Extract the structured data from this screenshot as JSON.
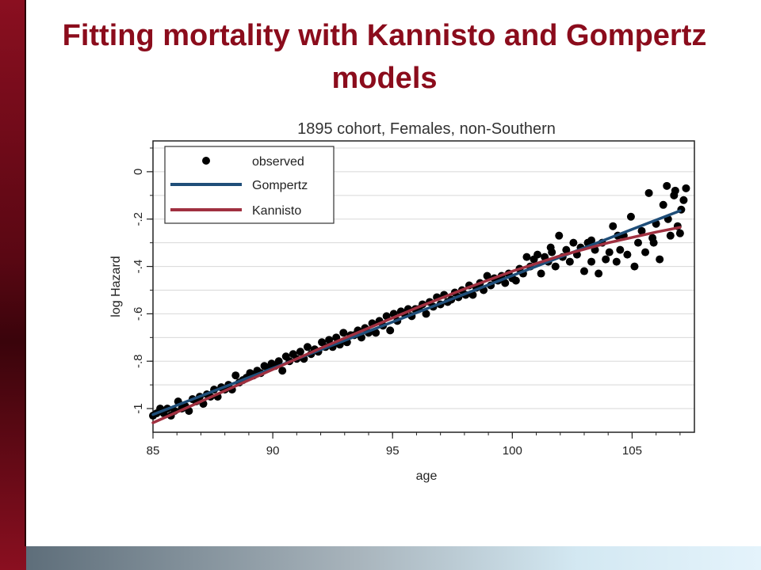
{
  "slide": {
    "title": "Fitting mortality with Kannisto and Gompertz models"
  },
  "colors": {
    "title": "#8b0c1c",
    "gompertz": "#1f4e79",
    "kannisto": "#a03040",
    "observed": "#000000"
  },
  "chart_data": {
    "type": "scatter",
    "title": "1895 cohort, Females, non-Southern",
    "xlabel": "age",
    "ylabel": "log Hazard",
    "xlim": [
      85,
      107.6
    ],
    "ylim": [
      -1.1,
      0.13
    ],
    "xticks": [
      85,
      90,
      95,
      100,
      105
    ],
    "xtick_labels": [
      "85",
      "90",
      "95",
      "100",
      "105"
    ],
    "yticks": [
      0,
      -0.2,
      -0.4,
      -0.6,
      -0.8,
      -1
    ],
    "ytick_labels": [
      "0",
      "-.2",
      "-.4",
      "-.6",
      "-.8",
      "-1"
    ],
    "grid": true,
    "legend_position": "top-left",
    "legend": [
      "observed",
      "Gompertz",
      "Kannisto"
    ],
    "series": [
      {
        "name": "observed",
        "mark": "point",
        "points": [
          [
            85.0,
            -1.03
          ],
          [
            85.15,
            -1.02
          ],
          [
            85.3,
            -1.0
          ],
          [
            85.45,
            -1.02
          ],
          [
            85.6,
            -1.0
          ],
          [
            85.75,
            -1.03
          ],
          [
            85.9,
            -1.01
          ],
          [
            86.05,
            -0.97
          ],
          [
            86.2,
            -1.0
          ],
          [
            86.35,
            -0.99
          ],
          [
            86.5,
            -1.01
          ],
          [
            86.65,
            -0.96
          ],
          [
            86.8,
            -0.97
          ],
          [
            86.95,
            -0.95
          ],
          [
            87.1,
            -0.98
          ],
          [
            87.25,
            -0.94
          ],
          [
            87.4,
            -0.95
          ],
          [
            87.55,
            -0.92
          ],
          [
            87.7,
            -0.95
          ],
          [
            87.85,
            -0.91
          ],
          [
            88.0,
            -0.92
          ],
          [
            88.15,
            -0.9
          ],
          [
            88.3,
            -0.92
          ],
          [
            88.45,
            -0.86
          ],
          [
            88.6,
            -0.89
          ],
          [
            88.75,
            -0.88
          ],
          [
            88.9,
            -0.87
          ],
          [
            89.05,
            -0.85
          ],
          [
            89.2,
            -0.86
          ],
          [
            89.35,
            -0.84
          ],
          [
            89.5,
            -0.85
          ],
          [
            89.65,
            -0.82
          ],
          [
            89.8,
            -0.83
          ],
          [
            89.95,
            -0.81
          ],
          [
            90.1,
            -0.82
          ],
          [
            90.25,
            -0.8
          ],
          [
            90.4,
            -0.84
          ],
          [
            90.55,
            -0.78
          ],
          [
            90.7,
            -0.8
          ],
          [
            90.85,
            -0.77
          ],
          [
            91.0,
            -0.79
          ],
          [
            91.15,
            -0.76
          ],
          [
            91.3,
            -0.79
          ],
          [
            91.45,
            -0.74
          ],
          [
            91.6,
            -0.77
          ],
          [
            91.75,
            -0.75
          ],
          [
            91.9,
            -0.76
          ],
          [
            92.05,
            -0.72
          ],
          [
            92.2,
            -0.74
          ],
          [
            92.35,
            -0.71
          ],
          [
            92.5,
            -0.74
          ],
          [
            92.65,
            -0.7
          ],
          [
            92.8,
            -0.73
          ],
          [
            92.95,
            -0.68
          ],
          [
            93.1,
            -0.72
          ],
          [
            93.25,
            -0.69
          ],
          [
            93.4,
            -0.69
          ],
          [
            93.55,
            -0.67
          ],
          [
            93.7,
            -0.7
          ],
          [
            93.85,
            -0.66
          ],
          [
            94.0,
            -0.68
          ],
          [
            94.15,
            -0.64
          ],
          [
            94.3,
            -0.68
          ],
          [
            94.45,
            -0.63
          ],
          [
            94.6,
            -0.65
          ],
          [
            94.75,
            -0.61
          ],
          [
            94.9,
            -0.67
          ],
          [
            95.05,
            -0.6
          ],
          [
            95.2,
            -0.63
          ],
          [
            95.35,
            -0.59
          ],
          [
            95.5,
            -0.6
          ],
          [
            95.65,
            -0.58
          ],
          [
            95.8,
            -0.61
          ],
          [
            95.95,
            -0.58
          ],
          [
            96.1,
            -0.58
          ],
          [
            96.25,
            -0.56
          ],
          [
            96.4,
            -0.6
          ],
          [
            96.55,
            -0.55
          ],
          [
            96.7,
            -0.57
          ],
          [
            96.85,
            -0.53
          ],
          [
            97.0,
            -0.56
          ],
          [
            97.15,
            -0.52
          ],
          [
            97.3,
            -0.55
          ],
          [
            97.45,
            -0.54
          ],
          [
            97.6,
            -0.51
          ],
          [
            97.75,
            -0.53
          ],
          [
            97.9,
            -0.5
          ],
          [
            98.05,
            -0.52
          ],
          [
            98.2,
            -0.48
          ],
          [
            98.35,
            -0.52
          ],
          [
            98.5,
            -0.49
          ],
          [
            98.65,
            -0.47
          ],
          [
            98.8,
            -0.5
          ],
          [
            98.95,
            -0.44
          ],
          [
            99.1,
            -0.48
          ],
          [
            99.25,
            -0.45
          ],
          [
            99.4,
            -0.46
          ],
          [
            99.55,
            -0.44
          ],
          [
            99.7,
            -0.47
          ],
          [
            99.85,
            -0.43
          ],
          [
            100.0,
            -0.45
          ],
          [
            100.15,
            -0.46
          ],
          [
            100.3,
            -0.41
          ],
          [
            100.45,
            -0.43
          ],
          [
            100.6,
            -0.36
          ],
          [
            100.75,
            -0.4
          ],
          [
            100.9,
            -0.37
          ],
          [
            101.05,
            -0.35
          ],
          [
            101.2,
            -0.43
          ],
          [
            101.35,
            -0.36
          ],
          [
            101.5,
            -0.38
          ],
          [
            101.65,
            -0.34
          ],
          [
            101.8,
            -0.4
          ],
          [
            101.95,
            -0.27
          ],
          [
            102.1,
            -0.36
          ],
          [
            102.25,
            -0.33
          ],
          [
            102.4,
            -0.38
          ],
          [
            102.55,
            -0.3
          ],
          [
            102.7,
            -0.35
          ],
          [
            102.85,
            -0.32
          ],
          [
            103.0,
            -0.42
          ],
          [
            103.15,
            -0.3
          ],
          [
            103.3,
            -0.38
          ],
          [
            103.45,
            -0.33
          ],
          [
            103.6,
            -0.43
          ],
          [
            103.75,
            -0.3
          ],
          [
            103.9,
            -0.37
          ],
          [
            104.05,
            -0.34
          ],
          [
            104.2,
            -0.23
          ],
          [
            104.35,
            -0.38
          ],
          [
            104.5,
            -0.33
          ],
          [
            104.65,
            -0.27
          ],
          [
            104.8,
            -0.35
          ],
          [
            104.95,
            -0.19
          ],
          [
            105.1,
            -0.4
          ],
          [
            105.25,
            -0.3
          ],
          [
            105.4,
            -0.25
          ],
          [
            105.55,
            -0.34
          ],
          [
            105.7,
            -0.09
          ],
          [
            105.85,
            -0.28
          ],
          [
            106.0,
            -0.22
          ],
          [
            106.15,
            -0.37
          ],
          [
            106.3,
            -0.14
          ],
          [
            106.45,
            -0.06
          ],
          [
            106.6,
            -0.27
          ],
          [
            106.75,
            -0.1
          ],
          [
            106.9,
            -0.23
          ],
          [
            107.05,
            -0.16
          ],
          [
            107.15,
            -0.12
          ],
          [
            107.25,
            -0.07
          ],
          [
            107.0,
            -0.26
          ],
          [
            106.5,
            -0.2
          ],
          [
            106.8,
            -0.08
          ],
          [
            105.9,
            -0.3
          ],
          [
            104.4,
            -0.27
          ],
          [
            103.3,
            -0.29
          ],
          [
            101.6,
            -0.32
          ]
        ]
      },
      {
        "name": "Gompertz",
        "mark": "line",
        "points": [
          [
            85,
            -1.025
          ],
          [
            107,
            -0.165
          ]
        ]
      },
      {
        "name": "Kannisto",
        "mark": "line",
        "points": [
          [
            85,
            -1.06
          ],
          [
            86,
            -1.015
          ],
          [
            88,
            -0.925
          ],
          [
            90,
            -0.835
          ],
          [
            92,
            -0.745
          ],
          [
            94,
            -0.66
          ],
          [
            96,
            -0.575
          ],
          [
            98,
            -0.495
          ],
          [
            100,
            -0.42
          ],
          [
            102,
            -0.355
          ],
          [
            104,
            -0.3
          ],
          [
            106,
            -0.255
          ],
          [
            107,
            -0.235
          ]
        ]
      }
    ]
  }
}
